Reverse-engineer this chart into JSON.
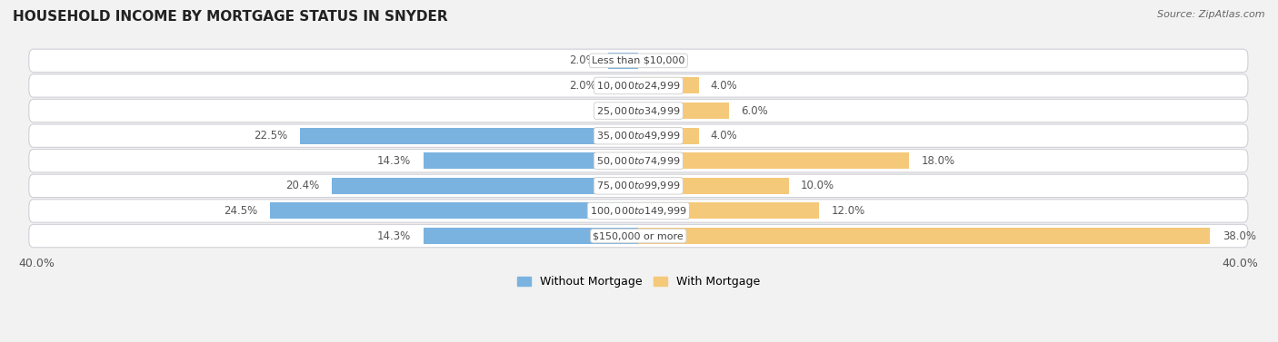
{
  "title": "HOUSEHOLD INCOME BY MORTGAGE STATUS IN SNYDER",
  "source": "Source: ZipAtlas.com",
  "categories": [
    "Less than $10,000",
    "$10,000 to $24,999",
    "$25,000 to $34,999",
    "$35,000 to $49,999",
    "$50,000 to $74,999",
    "$75,000 to $99,999",
    "$100,000 to $149,999",
    "$150,000 or more"
  ],
  "without_mortgage": [
    2.0,
    2.0,
    0.0,
    22.5,
    14.3,
    20.4,
    24.5,
    14.3
  ],
  "with_mortgage": [
    0.0,
    4.0,
    6.0,
    4.0,
    18.0,
    10.0,
    12.0,
    38.0
  ],
  "color_without": "#7ab3e0",
  "color_with": "#f5c97a",
  "axis_limit": 40.0,
  "background_color": "#f2f2f2",
  "row_bg_color": "#ffffff",
  "row_border_color": "#d0d0d8",
  "label_color": "#444444",
  "value_color": "#555555",
  "legend_label_without": "Without Mortgage",
  "legend_label_with": "With Mortgage",
  "title_fontsize": 11,
  "value_fontsize": 8.5,
  "cat_fontsize": 8.0
}
